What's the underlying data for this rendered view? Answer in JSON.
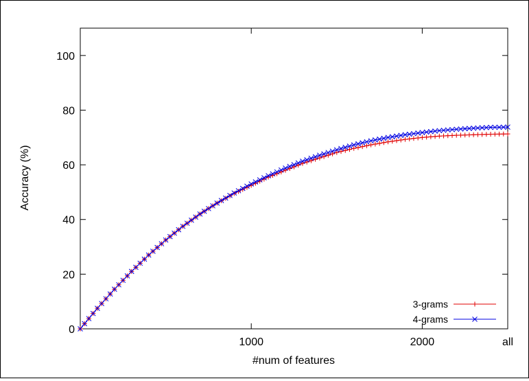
{
  "chart_data": {
    "type": "line",
    "xlabel": "#num of features",
    "ylabel": "Accuracy (%)",
    "xlim": [
      0,
      2500
    ],
    "ylim": [
      0,
      110
    ],
    "x_ticks": [
      {
        "value": 1000,
        "label": "1000"
      },
      {
        "value": 2000,
        "label": "2000"
      },
      {
        "value": 2500,
        "label": "all"
      }
    ],
    "y_ticks": [
      0,
      20,
      40,
      60,
      80,
      100
    ],
    "grid": false,
    "legend_position": "bottom-right",
    "series": [
      {
        "name": "3-grams",
        "color": "#e00000",
        "marker": "plus",
        "x": [
          0,
          100,
          200,
          300,
          400,
          500,
          600,
          700,
          800,
          900,
          1000,
          1100,
          1200,
          1300,
          1400,
          1500,
          1600,
          1700,
          1800,
          1900,
          2000,
          2100,
          2200,
          2300,
          2400,
          2500
        ],
        "y": [
          0,
          7.5,
          14.5,
          21.0,
          27.0,
          32.5,
          37.5,
          42.0,
          46.0,
          49.5,
          52.5,
          55.5,
          58.0,
          60.5,
          62.5,
          64.5,
          66.0,
          67.3,
          68.4,
          69.3,
          70.0,
          70.5,
          70.8,
          71.0,
          71.2,
          71.3
        ]
      },
      {
        "name": "4-grams",
        "color": "#0000e0",
        "marker": "x",
        "x": [
          0,
          100,
          200,
          300,
          400,
          500,
          600,
          700,
          800,
          900,
          1000,
          1100,
          1200,
          1300,
          1400,
          1500,
          1600,
          1700,
          1800,
          1900,
          2000,
          2100,
          2200,
          2300,
          2400,
          2500
        ],
        "y": [
          0,
          7.5,
          14.5,
          21.0,
          27.0,
          32.5,
          37.5,
          42.0,
          46.0,
          49.7,
          53.0,
          56.0,
          58.8,
          61.3,
          63.5,
          65.5,
          67.3,
          68.8,
          70.0,
          71.0,
          71.8,
          72.5,
          73.0,
          73.4,
          73.7,
          73.8
        ]
      }
    ]
  }
}
